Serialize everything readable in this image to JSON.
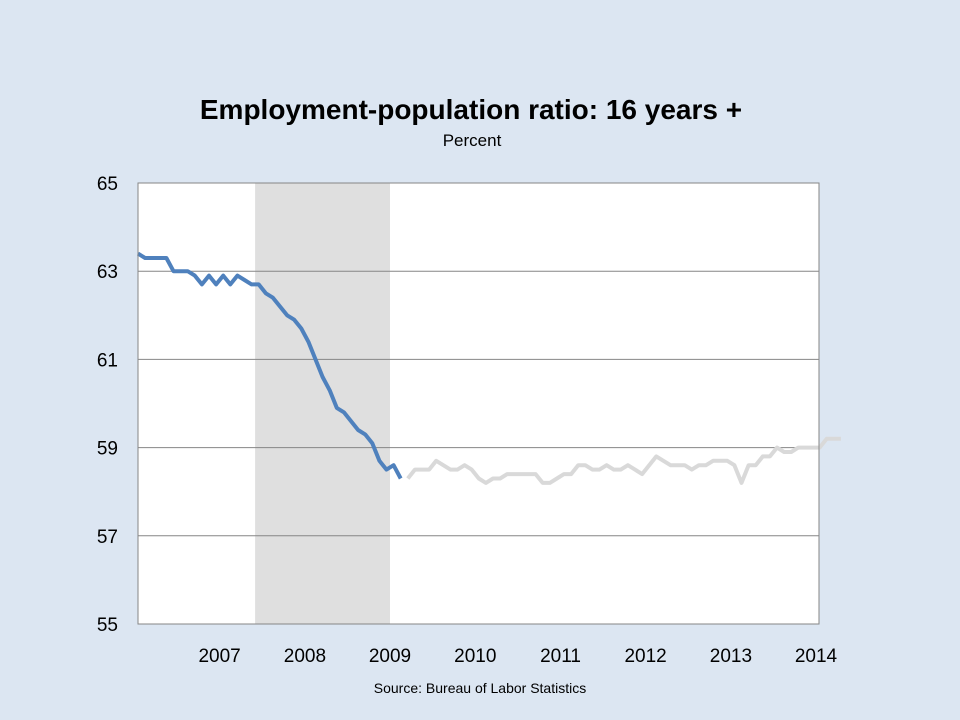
{
  "chart_data": {
    "type": "line",
    "title": "Employment-population ratio: 16 years +",
    "subtitle": "Percent",
    "source": "Source: Bureau of Labor Statistics",
    "xlabel": "",
    "ylabel": "",
    "ylim": [
      55,
      65
    ],
    "yticks": [
      "55",
      "57",
      "59",
      "61",
      "63",
      "65"
    ],
    "xticks": [
      "2007",
      "2008",
      "2009",
      "2010",
      "2011",
      "2012",
      "2013",
      "2014"
    ],
    "x_start": "2006-07",
    "recession_shading": {
      "start": "2007-12",
      "end": "2009-06"
    },
    "grid": true,
    "series": [
      {
        "color": "#4f81bd",
        "start": "2006-07",
        "values": [
          63.4,
          63.3,
          63.3,
          63.3,
          63.3,
          63.0,
          63.0,
          63.0,
          62.9,
          62.7,
          62.9,
          62.7,
          62.9,
          62.7,
          62.9,
          62.8,
          62.7,
          62.7,
          62.5,
          62.4,
          62.2,
          62.0,
          61.9,
          61.7,
          61.4,
          61.0,
          60.6,
          60.3,
          59.9,
          59.8,
          59.6,
          59.4,
          59.3,
          59.1,
          58.7,
          58.5,
          58.6,
          58.3
        ]
      },
      {
        "color": "#d9d9d9",
        "start": "2009-09",
        "values": [
          58.3,
          58.5,
          58.5,
          58.5,
          58.7,
          58.6,
          58.5,
          58.5,
          58.6,
          58.5,
          58.3,
          58.2,
          58.3,
          58.3,
          58.4,
          58.4,
          58.4,
          58.4,
          58.4,
          58.2,
          58.2,
          58.3,
          58.4,
          58.4,
          58.6,
          58.6,
          58.5,
          58.5,
          58.6,
          58.5,
          58.5,
          58.6,
          58.5,
          58.4,
          58.6,
          58.8,
          58.7,
          58.6,
          58.6,
          58.6,
          58.5,
          58.6,
          58.6,
          58.7,
          58.7,
          58.7,
          58.6,
          58.2,
          58.6,
          58.6,
          58.8,
          58.8,
          59.0,
          58.9,
          58.9,
          59.0,
          59.0,
          59.0,
          59.0,
          59.2,
          59.2,
          59.2
        ]
      }
    ]
  }
}
